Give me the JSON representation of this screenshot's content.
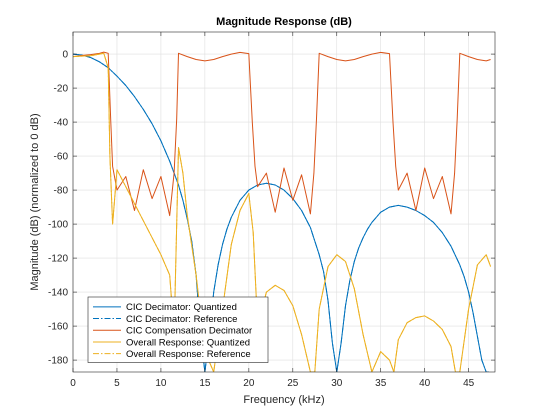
{
  "chart_data": {
    "type": "line",
    "title": "Magnitude Response (dB)",
    "xlabel": "Frequency (kHz)",
    "ylabel": "Magnitude (dB) (normalized to 0 dB)",
    "xlim": [
      0,
      48
    ],
    "ylim": [
      -187,
      13
    ],
    "xticks": [
      0,
      5,
      10,
      15,
      20,
      25,
      30,
      35,
      40,
      45
    ],
    "yticks": [
      0,
      -20,
      -40,
      -60,
      -80,
      -100,
      -120,
      -140,
      -160,
      -180
    ],
    "grid": true,
    "legend_position": "bottom-left",
    "series": [
      {
        "name": "CIC Decimator: Quantized",
        "color": "#0072BD",
        "style": "solid",
        "x": [
          0,
          1,
          2,
          3,
          4,
          5,
          6,
          7,
          8,
          9,
          10,
          11,
          12,
          12.5,
          13,
          13.5,
          14,
          14.5,
          15,
          15.5,
          16,
          16.5,
          17,
          17.5,
          18,
          19,
          20,
          21,
          22,
          23,
          24,
          25,
          26,
          27,
          28,
          28.5,
          29,
          29.5,
          30,
          30.5,
          31,
          31.5,
          32,
          32.5,
          33,
          33.5,
          34,
          34.5,
          35,
          36,
          37,
          38,
          39,
          40,
          41,
          42,
          43,
          44,
          44.5,
          45,
          45.5,
          46,
          46.5,
          47,
          47.3
        ],
        "y": [
          0,
          -0.5,
          -2,
          -4.5,
          -8,
          -13,
          -18.5,
          -25,
          -32.5,
          -41,
          -51,
          -63,
          -77,
          -86,
          -97,
          -110,
          -130,
          -165,
          -187,
          -165,
          -140,
          -124,
          -112,
          -103,
          -96,
          -86,
          -80,
          -77,
          -76,
          -77,
          -80,
          -85,
          -92,
          -102,
          -118,
          -128,
          -145,
          -170,
          -187,
          -170,
          -148,
          -133,
          -122,
          -114,
          -108,
          -103,
          -99,
          -96,
          -93,
          -90,
          -89,
          -90,
          -92,
          -95,
          -99,
          -105,
          -113,
          -124,
          -131,
          -140,
          -152,
          -166,
          -180,
          -187,
          -187
        ]
      },
      {
        "name": "CIC Decimator: Reference",
        "color": "#0072BD",
        "style": "dashdot",
        "x": [
          0,
          1,
          2,
          3,
          4,
          5,
          6,
          7,
          8,
          9,
          10,
          11,
          12,
          12.5,
          13,
          13.5,
          14,
          14.5,
          15,
          15.5,
          16,
          16.5,
          17,
          17.5,
          18,
          19,
          20,
          21,
          22,
          23,
          24,
          25,
          26,
          27,
          28,
          28.5,
          29,
          29.5,
          30,
          30.5,
          31,
          31.5,
          32,
          32.5,
          33,
          33.5,
          34,
          34.5,
          35,
          36,
          37,
          38,
          39,
          40,
          41,
          42,
          43,
          44,
          44.5,
          45,
          45.5,
          46,
          46.5,
          47,
          47.3
        ],
        "y": [
          0,
          -0.5,
          -2,
          -4.5,
          -8,
          -13,
          -18.5,
          -25,
          -32.5,
          -41,
          -51,
          -63,
          -77,
          -86,
          -97,
          -110,
          -130,
          -165,
          -187,
          -165,
          -140,
          -124,
          -112,
          -103,
          -96,
          -86,
          -80,
          -77,
          -76,
          -77,
          -80,
          -85,
          -92,
          -102,
          -118,
          -128,
          -145,
          -170,
          -187,
          -170,
          -148,
          -133,
          -122,
          -114,
          -108,
          -103,
          -99,
          -96,
          -93,
          -90,
          -89,
          -90,
          -92,
          -95,
          -99,
          -105,
          -113,
          -124,
          -131,
          -140,
          -152,
          -166,
          -180,
          -187,
          -187
        ]
      },
      {
        "name": "CIC Compensation Decimator",
        "color": "#D95319",
        "style": "solid",
        "x": [
          0,
          1,
          2,
          3,
          3.5,
          4,
          4.3,
          4.5,
          5,
          6,
          7,
          8,
          9,
          10,
          11,
          11.5,
          11.8,
          12,
          13,
          14,
          15,
          16,
          17,
          18,
          19,
          20,
          20.4,
          20.7,
          21,
          22,
          23,
          24,
          25,
          26,
          27,
          27.4,
          27.7,
          28,
          29,
          30,
          31,
          32,
          33,
          34,
          35,
          36,
          36.4,
          36.7,
          37,
          38,
          39,
          40,
          41,
          42,
          43,
          43.4,
          43.7,
          44,
          45,
          46,
          47,
          47.5
        ],
        "y": [
          -1.5,
          -0.8,
          -0.3,
          0.4,
          1.2,
          0.5,
          -40,
          -66,
          -80,
          -72,
          -92,
          -68,
          -85,
          -72,
          -95,
          -70,
          -38,
          0.5,
          -1.5,
          -3.2,
          -4,
          -3.2,
          -1.5,
          0,
          1,
          0.3,
          -40,
          -66,
          -78,
          -70,
          -93,
          -67,
          -86,
          -71,
          -94,
          -70,
          -38,
          0.5,
          -1.5,
          -3.2,
          -4,
          -3.2,
          -1.5,
          0,
          1,
          0.3,
          -40,
          -66,
          -80,
          -70,
          -92,
          -67,
          -85,
          -72,
          -94,
          -70,
          -38,
          0.5,
          -1.5,
          -3.2,
          -4,
          -3.2
        ]
      },
      {
        "name": "Overall Response: Quantized",
        "color": "#EDB120",
        "style": "solid",
        "x": [
          0,
          1,
          2,
          3,
          3.5,
          4,
          4.2,
          4.5,
          5,
          6,
          7,
          8,
          9,
          10,
          10.5,
          11,
          11.5,
          12,
          12.5,
          13,
          14,
          15,
          16,
          17,
          18,
          19,
          20,
          20.5,
          21,
          22,
          23,
          24,
          25,
          26,
          27,
          27.5,
          28,
          29,
          30,
          31,
          32,
          33,
          34,
          35,
          36,
          36.5,
          37,
          38,
          39,
          40,
          41,
          42,
          43,
          43.5,
          44,
          45,
          46,
          47,
          47.5
        ],
        "y": [
          -1.5,
          -1.2,
          -1,
          0,
          0.5,
          -8,
          -60,
          -100,
          -68,
          -78,
          -88,
          -98,
          -108,
          -118,
          -124,
          -130,
          -165,
          -55,
          -70,
          -95,
          -130,
          -175,
          -187,
          -150,
          -112,
          -92,
          -82,
          -105,
          -160,
          -140,
          -136,
          -139,
          -148,
          -165,
          -187,
          -187,
          -150,
          -125,
          -118,
          -122,
          -138,
          -165,
          -187,
          -175,
          -180,
          -187,
          -168,
          -158,
          -155,
          -154,
          -157,
          -162,
          -172,
          -187,
          -187,
          -150,
          -124,
          -118,
          -125
        ]
      },
      {
        "name": "Overall Response: Reference",
        "color": "#EDB120",
        "style": "dashdot",
        "x": [
          0,
          1,
          2,
          3,
          3.5,
          4,
          4.2,
          4.5,
          5,
          6,
          7,
          8,
          9,
          10,
          10.5,
          11,
          11.5,
          12,
          12.5,
          13,
          14,
          15,
          16,
          17,
          18,
          19,
          20,
          20.5,
          21,
          22,
          23,
          24,
          25,
          26,
          27,
          27.5,
          28,
          29,
          30,
          31,
          32,
          33,
          34,
          35,
          36,
          36.5,
          37,
          38,
          39,
          40,
          41,
          42,
          43,
          43.5,
          44,
          45,
          46,
          47,
          47.5
        ],
        "y": [
          -1.5,
          -1.2,
          -1,
          0,
          0.5,
          -8,
          -60,
          -100,
          -68,
          -78,
          -88,
          -98,
          -108,
          -118,
          -124,
          -130,
          -165,
          -55,
          -70,
          -95,
          -130,
          -175,
          -187,
          -150,
          -112,
          -92,
          -82,
          -105,
          -160,
          -140,
          -136,
          -139,
          -148,
          -165,
          -187,
          -187,
          -150,
          -125,
          -118,
          -122,
          -138,
          -165,
          -187,
          -175,
          -180,
          -187,
          -168,
          -158,
          -155,
          -154,
          -157,
          -162,
          -172,
          -187,
          -187,
          -150,
          -124,
          -118,
          -125
        ]
      }
    ]
  }
}
